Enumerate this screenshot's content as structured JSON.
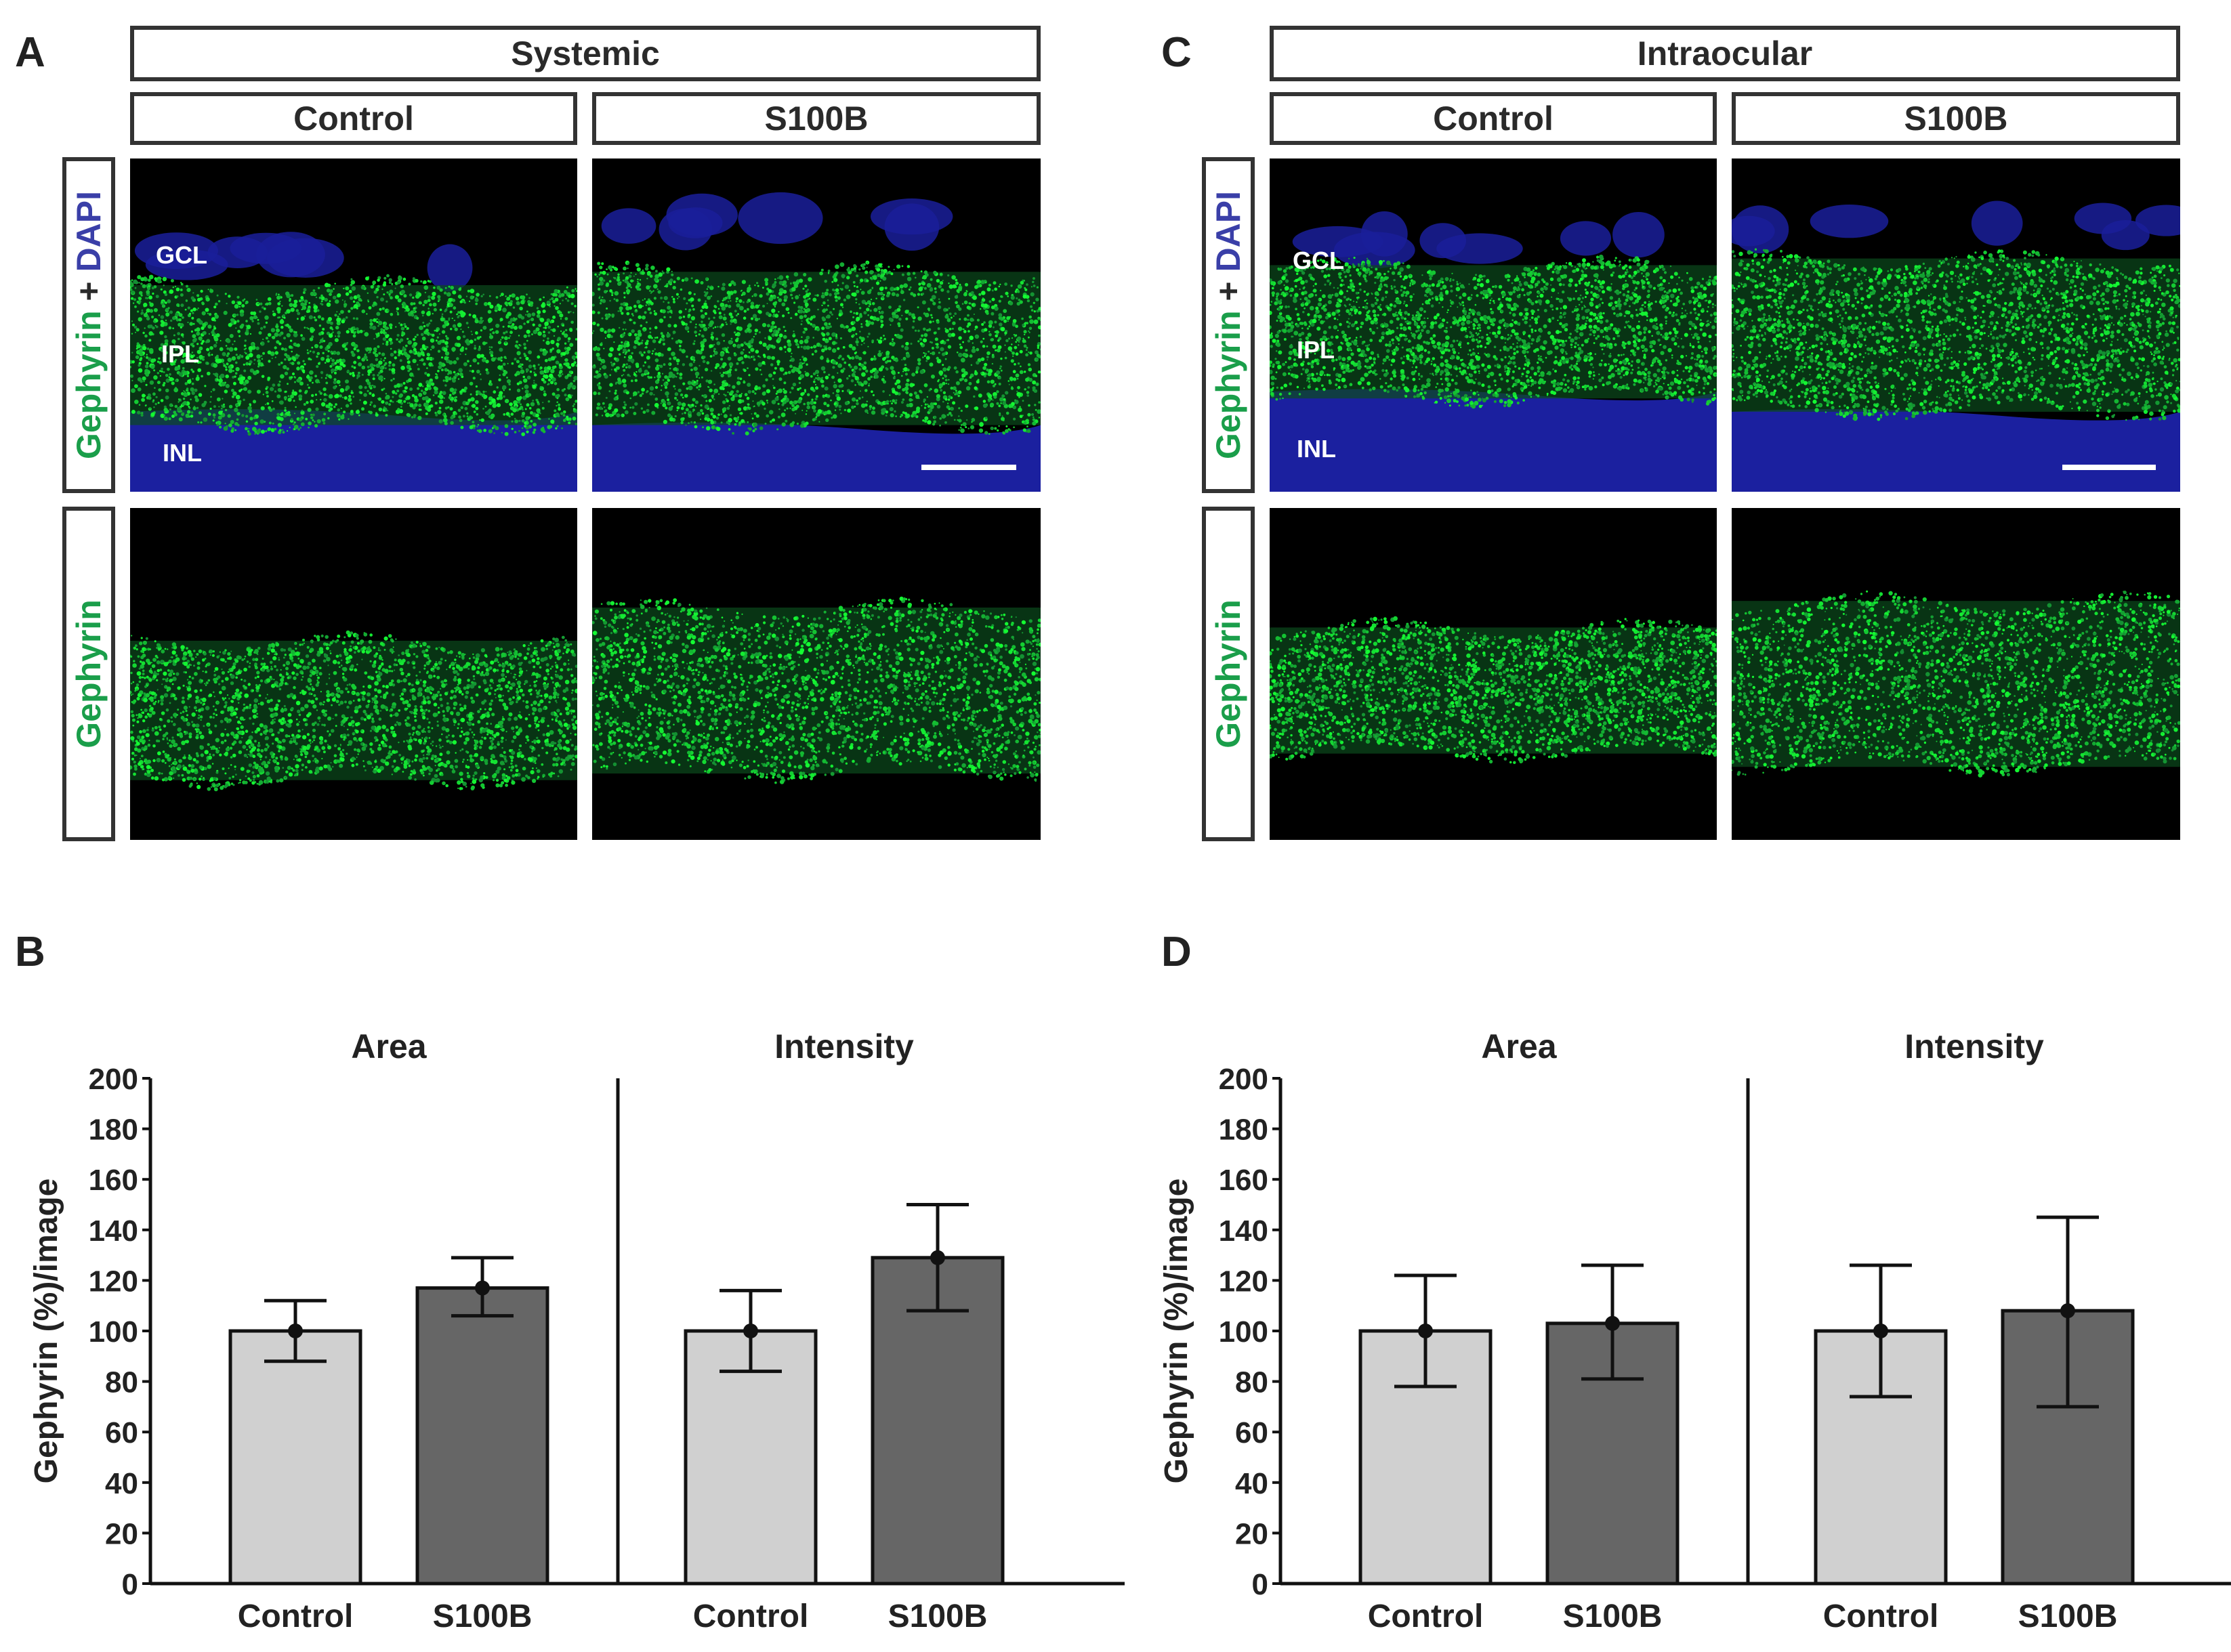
{
  "panels": {
    "A": {
      "letter": "A",
      "condition": "Systemic",
      "columns": [
        "Control",
        "S100B"
      ],
      "row_labels": {
        "top_green": "Gephyrin",
        "top_plus": " + ",
        "top_blue": "DAPI",
        "bottom": "Gephyrin"
      },
      "layers": [
        "GCL",
        "IPL",
        "INL"
      ]
    },
    "C": {
      "letter": "C",
      "condition": "Intraocular",
      "columns": [
        "Control",
        "S100B"
      ],
      "row_labels": {
        "top_green": "Gephyrin",
        "top_plus": " + ",
        "top_blue": "DAPI",
        "bottom": "Gephyrin"
      },
      "layers": [
        "GCL",
        "IPL",
        "INL"
      ]
    },
    "B": {
      "letter": "B"
    },
    "D": {
      "letter": "D"
    }
  },
  "colors": {
    "green": "#1a9e4a",
    "blue": "#3a3fa8",
    "control_bar": "#d0d0d0",
    "s100b_bar": "#666666"
  },
  "chart_data": [
    {
      "panel": "B",
      "type": "bar",
      "ylabel": "Gephyrin (%)/image",
      "ylim": [
        0,
        200
      ],
      "yticks": [
        0,
        20,
        40,
        60,
        80,
        100,
        120,
        140,
        160,
        180,
        200
      ],
      "groups": [
        {
          "title": "Area",
          "categories": [
            "Control",
            "S100B"
          ],
          "values": [
            100,
            117
          ],
          "err_low": [
            88,
            106
          ],
          "err_high": [
            112,
            129
          ]
        },
        {
          "title": "Intensity",
          "categories": [
            "Control",
            "S100B"
          ],
          "values": [
            100,
            129
          ],
          "err_low": [
            84,
            108
          ],
          "err_high": [
            116,
            150
          ]
        }
      ]
    },
    {
      "panel": "D",
      "type": "bar",
      "ylabel": "Gephyrin (%)/image",
      "ylim": [
        0,
        200
      ],
      "yticks": [
        0,
        20,
        40,
        60,
        80,
        100,
        120,
        140,
        160,
        180,
        200
      ],
      "groups": [
        {
          "title": "Area",
          "categories": [
            "Control",
            "S100B"
          ],
          "values": [
            100,
            103
          ],
          "err_low": [
            78,
            81
          ],
          "err_high": [
            122,
            126
          ]
        },
        {
          "title": "Intensity",
          "categories": [
            "Control",
            "S100B"
          ],
          "values": [
            100,
            108
          ],
          "err_low": [
            74,
            70
          ],
          "err_high": [
            126,
            145
          ]
        }
      ]
    }
  ]
}
